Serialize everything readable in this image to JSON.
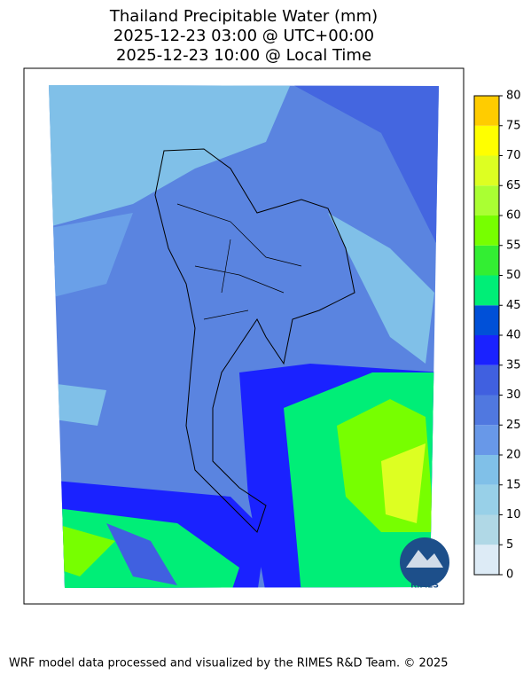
{
  "title_lines": [
    "Thailand Precipitable Water (mm)",
    "2025-12-23 03:00 @ UTC+00:00",
    "2025-12-23 10:00 @ Local Time"
  ],
  "colorbar": {
    "ticks": [
      0,
      5,
      10,
      15,
      20,
      25,
      30,
      35,
      40,
      45,
      50,
      55,
      60,
      65,
      70,
      75,
      80
    ],
    "colors": [
      "#ddebf6",
      "#b0d8e6",
      "#98d0e8",
      "#80c0e8",
      "#6898e8",
      "#5078e0",
      "#4060e0",
      "#1a22ff",
      "#0050d8",
      "#00ee77",
      "#33ee33",
      "#77ff00",
      "#aaff33",
      "#ddff22",
      "#ffff00",
      "#ffcc00"
    ]
  },
  "logo_text": "RIMES",
  "footer": "WRF model data processed and visualized by the RIMES R&D Team. © 2025"
}
